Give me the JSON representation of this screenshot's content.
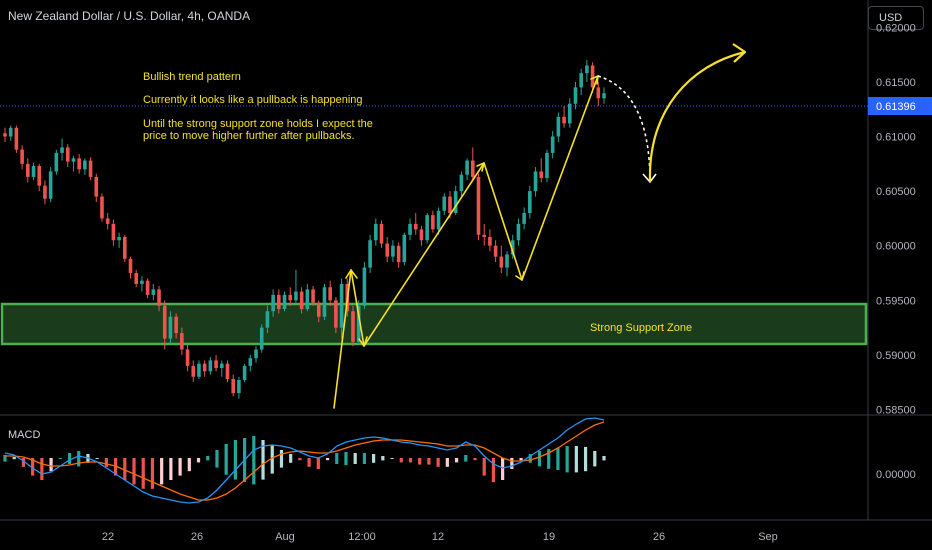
{
  "header": {
    "title": "New Zealand Dollar / U.S. Dollar, 4h, OANDA",
    "currency_button": "USD"
  },
  "annotations": {
    "line1": "Bullish trend pattern",
    "line2": "Currently it looks like a pullback is happening",
    "line3": "Until the strong support zone holds I expect the",
    "line4": "price to move higher further after pullbacks.",
    "zone_label": "Strong Support Zone"
  },
  "colors": {
    "up": "#26a69a",
    "down": "#ef5350",
    "annotation": "#f5e12a",
    "zone_fill": "#1e4620",
    "zone_border": "#4caf50",
    "macd_line": "#2196f3",
    "signal_line": "#ff6d00",
    "hist_up": "#b2dfdb",
    "hist_up_strong": "#26a69a",
    "hist_down": "#ffcdd2",
    "hist_down_strong": "#ef5350",
    "current_price_bg": "#2962ff"
  },
  "chart_data": [
    {
      "type": "candlestick",
      "title": "New Zealand Dollar / U.S. Dollar, 4h, OANDA",
      "y_tick_labels": [
        "0.62000",
        "0.61500",
        "0.61000",
        "0.60500",
        "0.60000",
        "0.59500",
        "0.59000",
        "0.58500"
      ],
      "x_tick_labels": [
        "22",
        "26",
        "Aug",
        "12:00",
        "12",
        "19",
        "26",
        "Sep"
      ],
      "ylim": [
        0.5845,
        0.6225
      ],
      "current_price": "0.61396",
      "support_zone": [
        0.5912,
        0.5951
      ],
      "zone_label": "Strong Support Zone",
      "series": [
        {
          "values": [
            [
              0.6103,
              0.6108,
              0.6095,
              0.61
            ],
            [
              0.61,
              0.611,
              0.6096,
              0.6108
            ],
            [
              0.6108,
              0.611,
              0.6085,
              0.6088
            ],
            [
              0.6088,
              0.6092,
              0.607,
              0.6075
            ],
            [
              0.6075,
              0.608,
              0.6058,
              0.6063
            ],
            [
              0.6063,
              0.6076,
              0.606,
              0.6073
            ],
            [
              0.6073,
              0.6075,
              0.605,
              0.6055
            ],
            [
              0.6055,
              0.606,
              0.6038,
              0.6043
            ],
            [
              0.6043,
              0.6072,
              0.604,
              0.6068
            ],
            [
              0.6068,
              0.6088,
              0.6065,
              0.6085
            ],
            [
              0.6085,
              0.6098,
              0.6078,
              0.609
            ],
            [
              0.609,
              0.6093,
              0.6072,
              0.6077
            ],
            [
              0.6077,
              0.6082,
              0.6068,
              0.608
            ],
            [
              0.608,
              0.6084,
              0.6066,
              0.607
            ],
            [
              0.607,
              0.608,
              0.6065,
              0.6078
            ],
            [
              0.6078,
              0.6081,
              0.606,
              0.6063
            ],
            [
              0.6063,
              0.6066,
              0.604,
              0.6045
            ],
            [
              0.6045,
              0.6048,
              0.6022,
              0.6025
            ],
            [
              0.6025,
              0.603,
              0.6015,
              0.602
            ],
            [
              0.602,
              0.6024,
              0.6,
              0.6005
            ],
            [
              0.6005,
              0.6012,
              0.5998,
              0.6008
            ],
            [
              0.6008,
              0.601,
              0.5985,
              0.5988
            ],
            [
              0.5988,
              0.599,
              0.597,
              0.5975
            ],
            [
              0.5975,
              0.5978,
              0.5962,
              0.5965
            ],
            [
              0.5965,
              0.5972,
              0.5958,
              0.5968
            ],
            [
              0.5968,
              0.597,
              0.5952,
              0.5955
            ],
            [
              0.5955,
              0.5965,
              0.595,
              0.596
            ],
            [
              0.596,
              0.5963,
              0.594,
              0.5945
            ],
            [
              0.5945,
              0.595,
              0.5905,
              0.5915
            ],
            [
              0.5915,
              0.594,
              0.591,
              0.5935
            ],
            [
              0.5935,
              0.5938,
              0.5915,
              0.592
            ],
            [
              0.592,
              0.5925,
              0.59,
              0.5905
            ],
            [
              0.5905,
              0.591,
              0.5885,
              0.589
            ],
            [
              0.589,
              0.5895,
              0.5875,
              0.588
            ],
            [
              0.588,
              0.5895,
              0.5878,
              0.5892
            ],
            [
              0.5892,
              0.5895,
              0.588,
              0.5885
            ],
            [
              0.5885,
              0.5898,
              0.5882,
              0.5895
            ],
            [
              0.5895,
              0.59,
              0.5885,
              0.5888
            ],
            [
              0.5888,
              0.5895,
              0.588,
              0.5892
            ],
            [
              0.5892,
              0.5895,
              0.5875,
              0.5878
            ],
            [
              0.5878,
              0.5882,
              0.5862,
              0.5865
            ],
            [
              0.5865,
              0.588,
              0.586,
              0.5877
            ],
            [
              0.5877,
              0.5892,
              0.5875,
              0.589
            ],
            [
              0.589,
              0.59,
              0.5885,
              0.5897
            ],
            [
              0.5897,
              0.5908,
              0.5893,
              0.5905
            ],
            [
              0.5905,
              0.5928,
              0.5902,
              0.5925
            ],
            [
              0.5925,
              0.5945,
              0.592,
              0.594
            ],
            [
              0.594,
              0.596,
              0.5935,
              0.5955
            ],
            [
              0.5955,
              0.596,
              0.5938,
              0.5942
            ],
            [
              0.5942,
              0.5958,
              0.594,
              0.5955
            ],
            [
              0.5955,
              0.5962,
              0.5945,
              0.595
            ],
            [
              0.595,
              0.5978,
              0.5948,
              0.5958
            ],
            [
              0.5958,
              0.5962,
              0.5938,
              0.5942
            ],
            [
              0.5942,
              0.5965,
              0.594,
              0.596
            ],
            [
              0.596,
              0.5963,
              0.5945,
              0.5948
            ],
            [
              0.5948,
              0.595,
              0.593,
              0.5935
            ],
            [
              0.5935,
              0.5965,
              0.5932,
              0.5962
            ],
            [
              0.5962,
              0.5968,
              0.5945,
              0.595
            ],
            [
              0.595,
              0.5953,
              0.592,
              0.5925
            ],
            [
              0.5925,
              0.597,
              0.5915,
              0.5965
            ],
            [
              0.5965,
              0.597,
              0.5935,
              0.594
            ],
            [
              0.594,
              0.5945,
              0.5908,
              0.5912
            ],
            [
              0.5912,
              0.595,
              0.591,
              0.5945
            ],
            [
              0.5945,
              0.5985,
              0.5942,
              0.598
            ],
            [
              0.598,
              0.601,
              0.5975,
              0.6005
            ],
            [
              0.6005,
              0.6025,
              0.6,
              0.602
            ],
            [
              0.602,
              0.6023,
              0.5998,
              0.6002
            ],
            [
              0.6002,
              0.6008,
              0.5985,
              0.599
            ],
            [
              0.599,
              0.6005,
              0.5985,
              0.6
            ],
            [
              0.6,
              0.6003,
              0.598,
              0.5985
            ],
            [
              0.5985,
              0.6012,
              0.5982,
              0.601
            ],
            [
              0.601,
              0.6025,
              0.6005,
              0.602
            ],
            [
              0.602,
              0.603,
              0.601,
              0.6015
            ],
            [
              0.6015,
              0.6018,
              0.6,
              0.6005
            ],
            [
              0.6005,
              0.603,
              0.6002,
              0.6028
            ],
            [
              0.6028,
              0.6032,
              0.6012,
              0.6015
            ],
            [
              0.6015,
              0.6035,
              0.601,
              0.6032
            ],
            [
              0.6032,
              0.6048,
              0.6028,
              0.6045
            ],
            [
              0.6045,
              0.605,
              0.6025,
              0.603
            ],
            [
              0.603,
              0.6055,
              0.6028,
              0.605
            ],
            [
              0.605,
              0.6068,
              0.6045,
              0.6065
            ],
            [
              0.6065,
              0.608,
              0.606,
              0.6078
            ],
            [
              0.6078,
              0.609,
              0.606,
              0.6063
            ],
            [
              0.6063,
              0.6066,
              0.6005,
              0.601
            ],
            [
              0.601,
              0.602,
              0.6,
              0.6008
            ],
            [
              0.6008,
              0.6015,
              0.5995,
              0.6
            ],
            [
              0.6,
              0.6005,
              0.5985,
              0.599
            ],
            [
              0.599,
              0.6,
              0.5975,
              0.598
            ],
            [
              0.598,
              0.5995,
              0.5972,
              0.5992
            ],
            [
              0.5992,
              0.601,
              0.5988,
              0.6005
            ],
            [
              0.6005,
              0.6025,
              0.6,
              0.602
            ],
            [
              0.602,
              0.6035,
              0.6015,
              0.603
            ],
            [
              0.603,
              0.6055,
              0.6025,
              0.605
            ],
            [
              0.605,
              0.6072,
              0.6045,
              0.6068
            ],
            [
              0.6068,
              0.608,
              0.6058,
              0.6062
            ],
            [
              0.6062,
              0.6088,
              0.6058,
              0.6085
            ],
            [
              0.6085,
              0.6105,
              0.608,
              0.61
            ],
            [
              0.61,
              0.6122,
              0.6095,
              0.6118
            ],
            [
              0.6118,
              0.6128,
              0.6108,
              0.6112
            ],
            [
              0.6112,
              0.6135,
              0.6108,
              0.613
            ],
            [
              0.613,
              0.615,
              0.6125,
              0.6145
            ],
            [
              0.6145,
              0.6162,
              0.6138,
              0.6158
            ],
            [
              0.6158,
              0.617,
              0.615,
              0.6165
            ],
            [
              0.6165,
              0.6168,
              0.614,
              0.6145
            ],
            [
              0.6145,
              0.615,
              0.6128,
              0.6135
            ],
            [
              0.6135,
              0.6145,
              0.613,
              0.61396
            ]
          ]
        }
      ]
    },
    {
      "type": "line",
      "title": "MACD",
      "y_tick_labels": [
        "0.00000"
      ],
      "ylim": [
        -0.006,
        0.004
      ],
      "series": [
        {
          "values": [
            0.0005,
            0.0003,
            -0.0003,
            -0.001,
            -0.0016,
            -0.0014,
            -0.0008,
            -0.0002,
            0.0002,
            0.0,
            -0.0004,
            -0.001,
            -0.0016,
            -0.0022,
            -0.0028,
            -0.0034,
            -0.0038,
            -0.004,
            -0.0042,
            -0.0044,
            -0.0045,
            -0.0044,
            -0.004,
            -0.0032,
            -0.0022,
            -0.0012,
            -0.0002,
            0.0008,
            0.0012,
            0.0013,
            0.0012,
            0.001,
            0.0006,
            0.0002,
            0.0,
            0.0004,
            0.0012,
            0.0016,
            0.0018,
            0.002,
            0.0021,
            0.002,
            0.0018,
            0.0016,
            0.0015,
            0.0013,
            0.0012,
            0.001,
            0.0008,
            0.001,
            0.0016,
            0.0012,
            0.0002,
            -0.0006,
            -0.001,
            -0.0008,
            -0.0004,
            0.0002,
            0.0008,
            0.0014,
            0.002,
            0.0028,
            0.0034,
            0.0039,
            0.004,
            0.0038
          ]
        },
        {
          "values": [
            0.0002,
            0.0002,
            0.0001,
            -0.0002,
            -0.0006,
            -0.0008,
            -0.0008,
            -0.0007,
            -0.0005,
            -0.0004,
            -0.0004,
            -0.0006,
            -0.0008,
            -0.0012,
            -0.0016,
            -0.002,
            -0.0024,
            -0.0028,
            -0.0032,
            -0.0036,
            -0.0039,
            -0.0042,
            -0.0042,
            -0.004,
            -0.0036,
            -0.003,
            -0.0022,
            -0.0014,
            -0.0006,
            0.0,
            0.0004,
            0.0006,
            0.0007,
            0.0006,
            0.0005,
            0.0005,
            0.0007,
            0.001,
            0.0013,
            0.0015,
            0.0017,
            0.0018,
            0.0018,
            0.0018,
            0.0017,
            0.0016,
            0.0015,
            0.0014,
            0.0012,
            0.0012,
            0.0013,
            0.0013,
            0.001,
            0.0005,
            0.0,
            -0.0003,
            -0.0003,
            -0.0002,
            0.0001,
            0.0005,
            0.001,
            0.0016,
            0.0022,
            0.0028,
            0.0033,
            0.0036
          ]
        }
      ]
    }
  ],
  "x_axis": {
    "labels": [
      "22",
      "26",
      "Aug",
      "12:00",
      "12",
      "19",
      "26",
      "Sep"
    ]
  }
}
